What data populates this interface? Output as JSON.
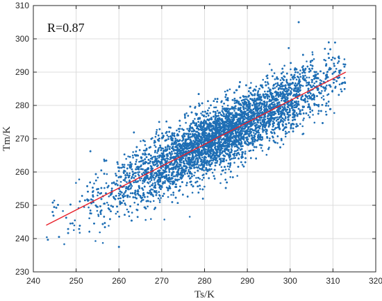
{
  "chart_data": {
    "type": "scatter",
    "xlabel": "Ts/K",
    "ylabel": "Tm/K",
    "xlim": [
      240,
      320
    ],
    "ylim": [
      230,
      310
    ],
    "x_ticks": [
      240,
      250,
      260,
      270,
      280,
      290,
      300,
      310,
      320
    ],
    "y_ticks": [
      230,
      240,
      250,
      260,
      270,
      280,
      290,
      300,
      310
    ],
    "grid": true,
    "annotation": "R=0.87",
    "correlation": 0.87,
    "series": [
      {
        "kind": "points",
        "color": "#1f6fb5",
        "count": 14000,
        "x_mean": 284,
        "x_sd": 13,
        "x_range": [
          243,
          313
        ],
        "y_mean": 272,
        "outliers": [
          {
            "x": 302,
            "y": 305
          },
          {
            "x": 260,
            "y": 237.5
          },
          {
            "x": 244.5,
            "y": 248
          },
          {
            "x": 246,
            "y": 240.5
          }
        ]
      },
      {
        "kind": "fit-line",
        "color": "#e8202a",
        "x": [
          243,
          313
        ],
        "y": [
          244,
          290
        ]
      }
    ]
  }
}
